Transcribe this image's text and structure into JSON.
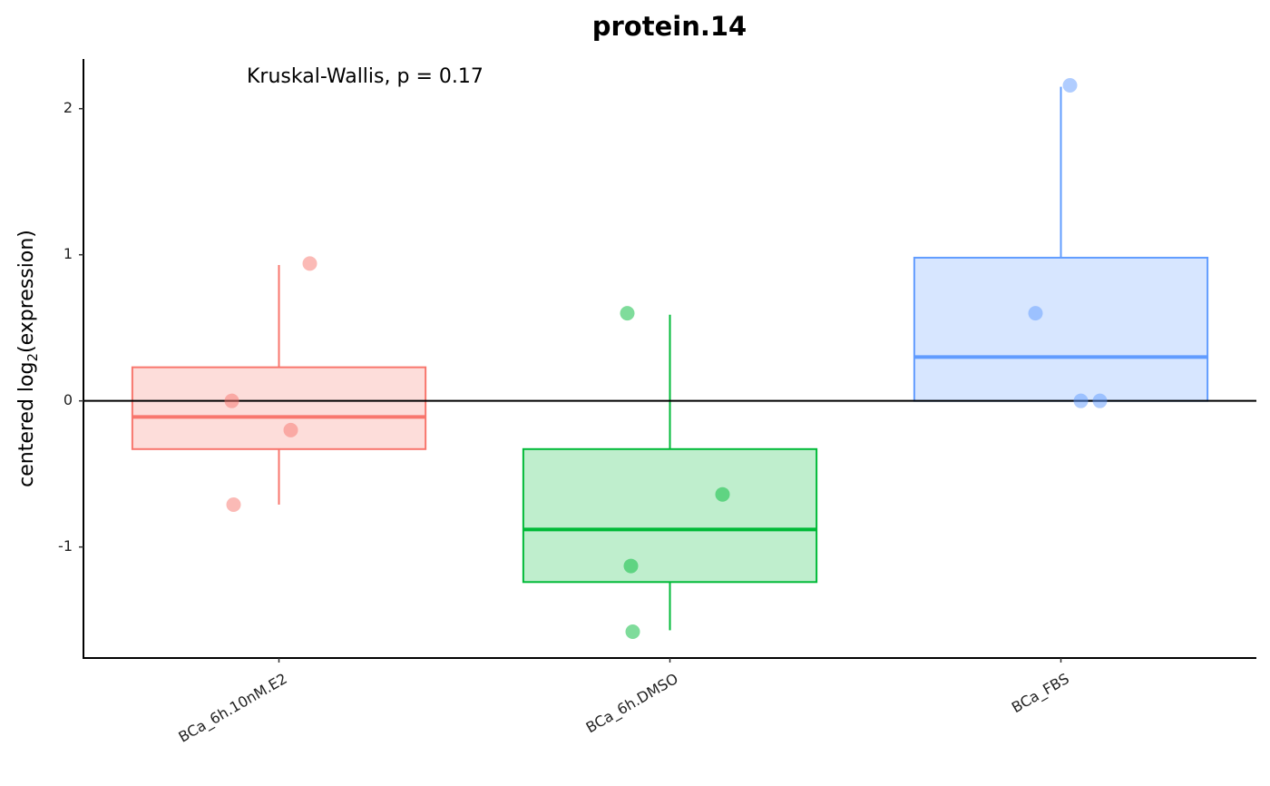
{
  "chart_data": {
    "type": "box",
    "title": "protein.14",
    "annotation": "Kruskal-Wallis, p = 0.17",
    "ylabel": [
      "centered log",
      "2",
      "(expression)"
    ],
    "categories": [
      "BCa_6h.10nM.E2",
      "BCa_6h.DMSO",
      "BCa_FBS"
    ],
    "boxes": [
      {
        "color": "#f8766d",
        "whisker_low": -0.71,
        "q1": -0.33,
        "median": -0.11,
        "q3": 0.23,
        "whisker_high": 0.93,
        "points": [
          0,
          -0.2,
          0.94,
          -0.71
        ]
      },
      {
        "color": "#00ba38",
        "whisker_low": -1.57,
        "q1": -1.24,
        "median": -0.88,
        "q3": -0.33,
        "whisker_high": 0.59,
        "points": [
          0.6,
          -0.64,
          -1.13,
          -1.58
        ]
      },
      {
        "color": "#619cff",
        "whisker_low": 0,
        "q1": 0,
        "median": 0.3,
        "q3": 0.98,
        "whisker_high": 2.15,
        "points": [
          2.16,
          0.6,
          0,
          0
        ]
      }
    ],
    "hline": 0,
    "ylim": [
      -1.76,
      2.34
    ],
    "yticks": [
      -1,
      0,
      1,
      2
    ]
  }
}
